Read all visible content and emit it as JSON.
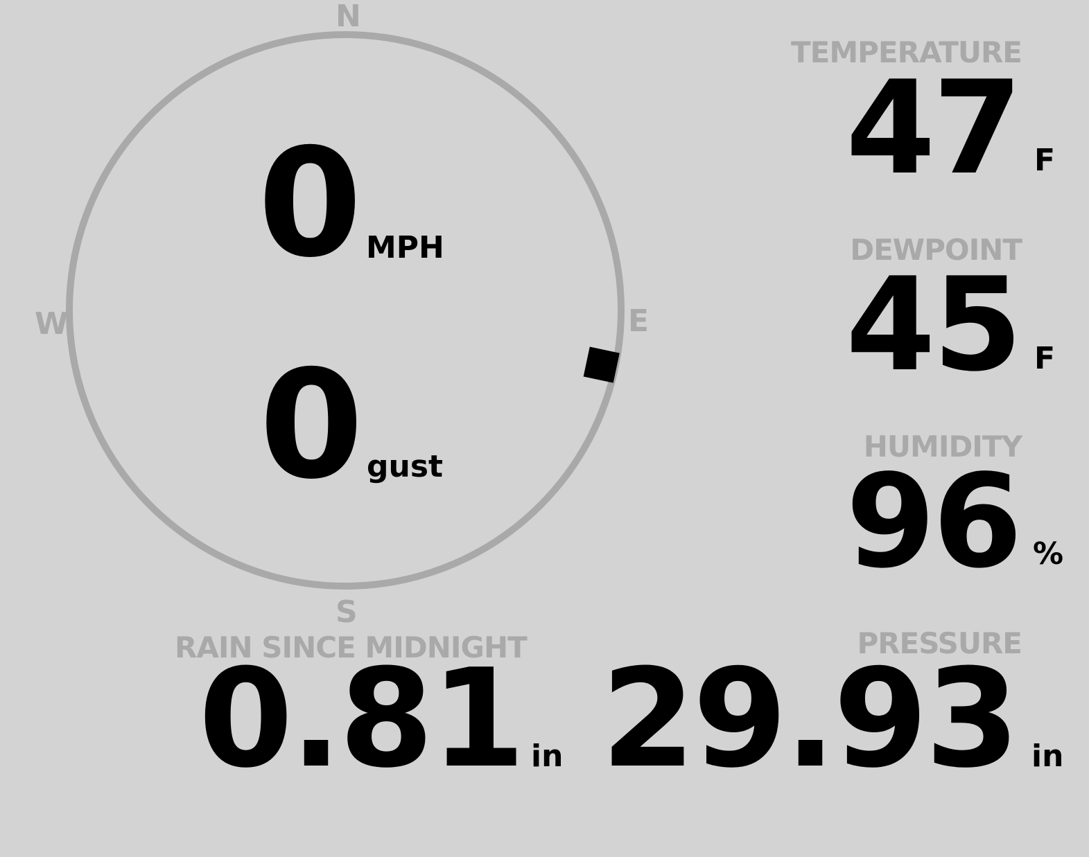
{
  "wind": {
    "speed": "0",
    "speed_unit": "MPH",
    "gust": "0",
    "gust_unit": "gust",
    "direction_deg": 102,
    "compass": {
      "n": "N",
      "e": "E",
      "s": "S",
      "w": "W"
    }
  },
  "temperature": {
    "label": "TEMPERATURE",
    "value": "47",
    "unit": "F"
  },
  "dewpoint": {
    "label": "DEWPOINT",
    "value": "45",
    "unit": "F"
  },
  "humidity": {
    "label": "HUMIDITY",
    "value": "96",
    "unit": "%"
  },
  "rain": {
    "label": "RAIN SINCE MIDNIGHT",
    "value": "0.81",
    "unit": "in"
  },
  "pressure": {
    "label": "PRESSURE",
    "value": "29.93",
    "unit": "in"
  },
  "colors": {
    "background": "#d3d3d3",
    "muted": "#a9a9a9",
    "value": "#000000"
  }
}
